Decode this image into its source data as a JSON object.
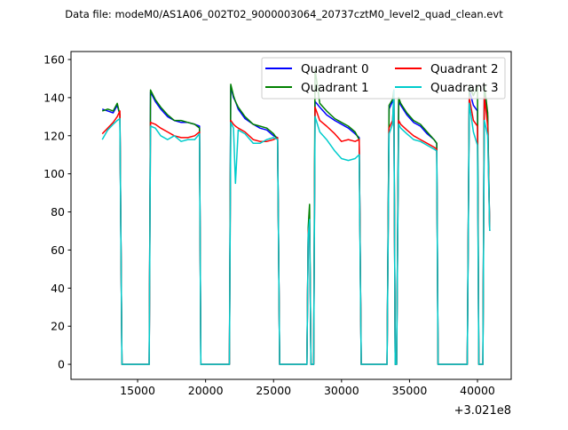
{
  "chart_data": {
    "type": "line",
    "title": "Data file: modeM0/AS1A06_002T02_9000003064_20737cztM0_level2_quad_clean.evt",
    "xlabel": "",
    "ylabel": "",
    "x_offset_label": "+3.021e8",
    "xlim": [
      10100,
      42480
    ],
    "ylim": [
      -7.9,
      164.2
    ],
    "xticks": [
      15000,
      20000,
      25000,
      30000,
      35000,
      40000
    ],
    "yticks": [
      0,
      20,
      40,
      60,
      80,
      100,
      120,
      140,
      160
    ],
    "legend": {
      "placement": "upper-right",
      "columns": 2
    },
    "grid": false,
    "x": [
      12400,
      12800,
      13200,
      13500,
      13700,
      13850,
      14000,
      15700,
      15850,
      15950,
      16300,
      16700,
      17200,
      17700,
      18200,
      18700,
      19200,
      19550,
      19650,
      19800,
      21600,
      21750,
      21850,
      22050,
      22200,
      22400,
      22900,
      23500,
      24000,
      24500,
      25000,
      25300,
      25450,
      25600,
      27300,
      27450,
      27550,
      27650,
      27750,
      27850,
      27950,
      28050,
      28400,
      28900,
      29500,
      30000,
      30500,
      31000,
      31300,
      31450,
      31600,
      33200,
      33350,
      33500,
      33750,
      33850,
      33950,
      34050,
      34200,
      34350,
      34800,
      35300,
      35800,
      36300,
      36800,
      37000,
      37100,
      37250,
      39100,
      39250,
      39400,
      39700,
      40000,
      40100,
      40200,
      40400,
      40500,
      40600,
      40750,
      40900
    ],
    "series": [
      {
        "name": "Quadrant 0",
        "color": "#0000ff",
        "values": [
          134,
          133,
          132,
          136,
          131,
          0,
          0,
          0,
          0,
          143,
          138,
          134,
          130,
          128,
          127,
          127,
          126,
          125,
          0,
          0,
          0,
          0,
          146,
          140,
          138,
          134,
          129,
          126,
          124,
          123,
          120,
          119,
          0,
          0,
          0,
          0,
          70,
          76,
          0,
          0,
          0,
          138,
          135,
          131,
          128,
          126,
          124,
          121,
          119,
          0,
          0,
          0,
          0,
          134,
          138,
          140,
          0,
          0,
          138,
          136,
          131,
          127,
          125,
          121,
          118,
          116,
          0,
          0,
          0,
          0,
          144,
          136,
          133,
          0,
          0,
          0,
          145,
          140,
          130,
          70
        ]
      },
      {
        "name": "Quadrant 1",
        "color": "#008000",
        "values": [
          133,
          134,
          133,
          137,
          131,
          0,
          0,
          0,
          0,
          144,
          139,
          135,
          131,
          128,
          128,
          127,
          126,
          124,
          0,
          0,
          0,
          0,
          147,
          141,
          138,
          135,
          130,
          126,
          125,
          124,
          121,
          118,
          0,
          0,
          0,
          0,
          72,
          84,
          0,
          0,
          0,
          155,
          137,
          133,
          129,
          127,
          125,
          122,
          118,
          0,
          0,
          0,
          0,
          136,
          139,
          144,
          0,
          0,
          140,
          137,
          132,
          128,
          126,
          122,
          118,
          116,
          0,
          0,
          0,
          0,
          146,
          141,
          146,
          0,
          0,
          0,
          147,
          141,
          132,
          70
        ]
      },
      {
        "name": "Quadrant 2",
        "color": "#ff0000",
        "values": [
          121,
          124,
          127,
          130,
          133,
          0,
          0,
          0,
          0,
          127,
          126,
          124,
          122,
          120,
          119,
          119,
          120,
          122,
          0,
          0,
          0,
          0,
          128,
          126,
          125,
          124,
          122,
          118,
          117,
          117,
          118,
          119,
          0,
          0,
          0,
          0,
          70,
          74,
          0,
          0,
          0,
          135,
          128,
          125,
          121,
          117,
          118,
          117,
          118,
          0,
          0,
          0,
          0,
          124,
          128,
          140,
          0,
          0,
          128,
          126,
          123,
          120,
          118,
          116,
          114,
          113,
          0,
          0,
          0,
          0,
          140,
          128,
          125,
          0,
          0,
          0,
          140,
          135,
          125,
          70
        ]
      },
      {
        "name": "Quadrant 3",
        "color": "#00cccc",
        "values": [
          118,
          123,
          126,
          128,
          129,
          0,
          0,
          0,
          0,
          125,
          124,
          120,
          118,
          120,
          117,
          118,
          118,
          121,
          0,
          0,
          0,
          0,
          127,
          124,
          95,
          123,
          121,
          116,
          116,
          118,
          119,
          118,
          0,
          0,
          0,
          0,
          68,
          76,
          0,
          0,
          0,
          130,
          122,
          118,
          112,
          108,
          107,
          108,
          110,
          0,
          0,
          0,
          0,
          121,
          126,
          144,
          0,
          0,
          126,
          124,
          121,
          118,
          117,
          115,
          113,
          112,
          0,
          0,
          0,
          0,
          137,
          122,
          115,
          0,
          0,
          0,
          128,
          125,
          120,
          70
        ]
      }
    ]
  }
}
